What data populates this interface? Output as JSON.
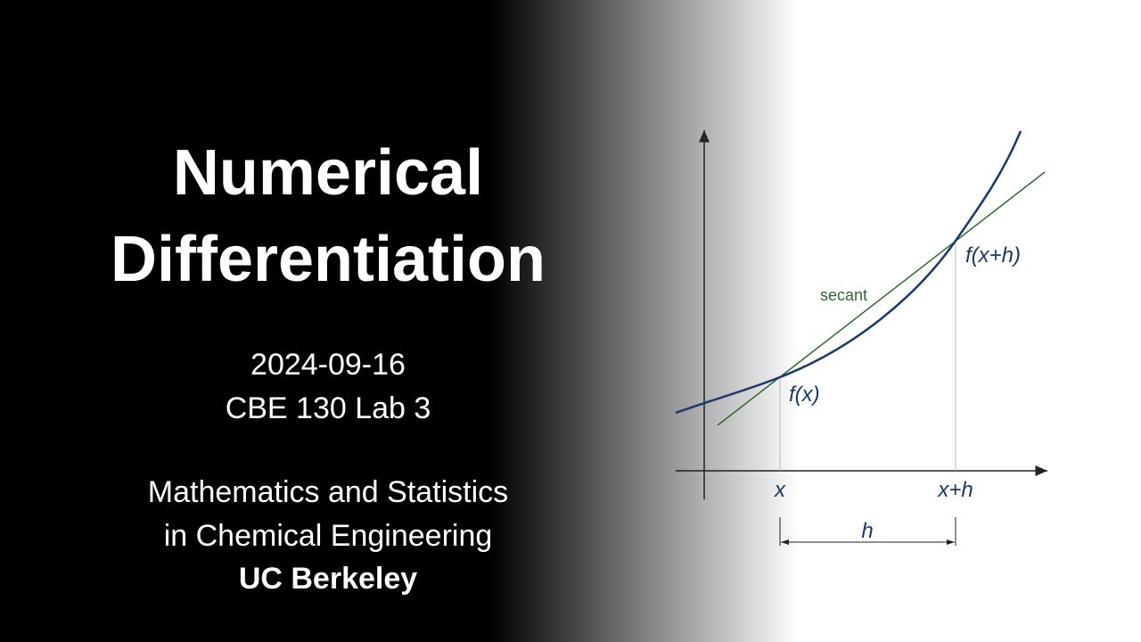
{
  "title": [
    "Numerical",
    "Differentiation"
  ],
  "date": "2024-09-16",
  "course": "CBE 130 Lab 3",
  "description": [
    "Mathematics and Statistics",
    "in Chemical Engineering"
  ],
  "institution": "UC Berkeley",
  "diagram": {
    "secant_label": "secant",
    "point_a_label": "f(x)",
    "point_b_label": "f(x+h)",
    "x_label": "x",
    "xh_label": "x+h",
    "step_label": "h"
  }
}
